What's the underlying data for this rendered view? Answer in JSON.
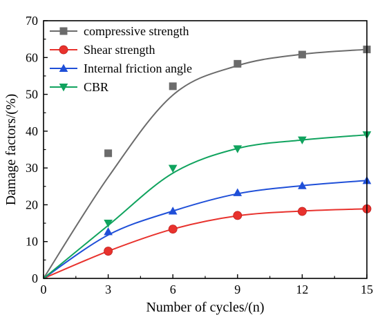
{
  "chart_data": {
    "type": "line",
    "title": "",
    "xlabel": "Number of cycles/(n)",
    "ylabel": "Damage factors/(%)",
    "xlim": [
      0,
      15
    ],
    "ylim": [
      0,
      70
    ],
    "xticks": [
      0,
      3,
      6,
      9,
      12,
      15
    ],
    "yticks": [
      0,
      10,
      20,
      30,
      40,
      50,
      60,
      70
    ],
    "grid": false,
    "legend_position": "top-left",
    "series": [
      {
        "name": "compressive strength",
        "color": "#6b6b6b",
        "marker": "square",
        "x": [
          0,
          3,
          6,
          9,
          12,
          15
        ],
        "y": [
          0,
          34,
          52.2,
          58.3,
          60.8,
          62.2
        ],
        "fit_y": [
          0,
          27.5,
          49.8,
          57.8,
          60.9,
          62.2
        ]
      },
      {
        "name": "Shear strength",
        "color": "#e8322d",
        "marker": "circle",
        "x": [
          0,
          3,
          6,
          9,
          12,
          15
        ],
        "y": [
          0,
          7.4,
          13.4,
          17.1,
          18.2,
          18.9
        ],
        "fit_y": [
          0,
          7.4,
          13.4,
          17.0,
          18.3,
          18.9
        ]
      },
      {
        "name": "Internal friction angle",
        "color": "#1f4fd8",
        "marker": "triangle-up",
        "x": [
          0,
          3,
          6,
          9,
          12,
          15
        ],
        "y": [
          0,
          12.7,
          18.3,
          23.3,
          25.2,
          26.6
        ],
        "fit_y": [
          0,
          11.8,
          18.3,
          23.0,
          25.2,
          26.6
        ]
      },
      {
        "name": "CBR",
        "color": "#10a35e",
        "marker": "triangle-down",
        "x": [
          0,
          3,
          6,
          9,
          12,
          15
        ],
        "y": [
          0,
          15,
          29.9,
          35.2,
          37.6,
          39
        ],
        "fit_y": [
          0,
          14.4,
          28.6,
          35.3,
          37.6,
          39.0
        ]
      }
    ]
  }
}
